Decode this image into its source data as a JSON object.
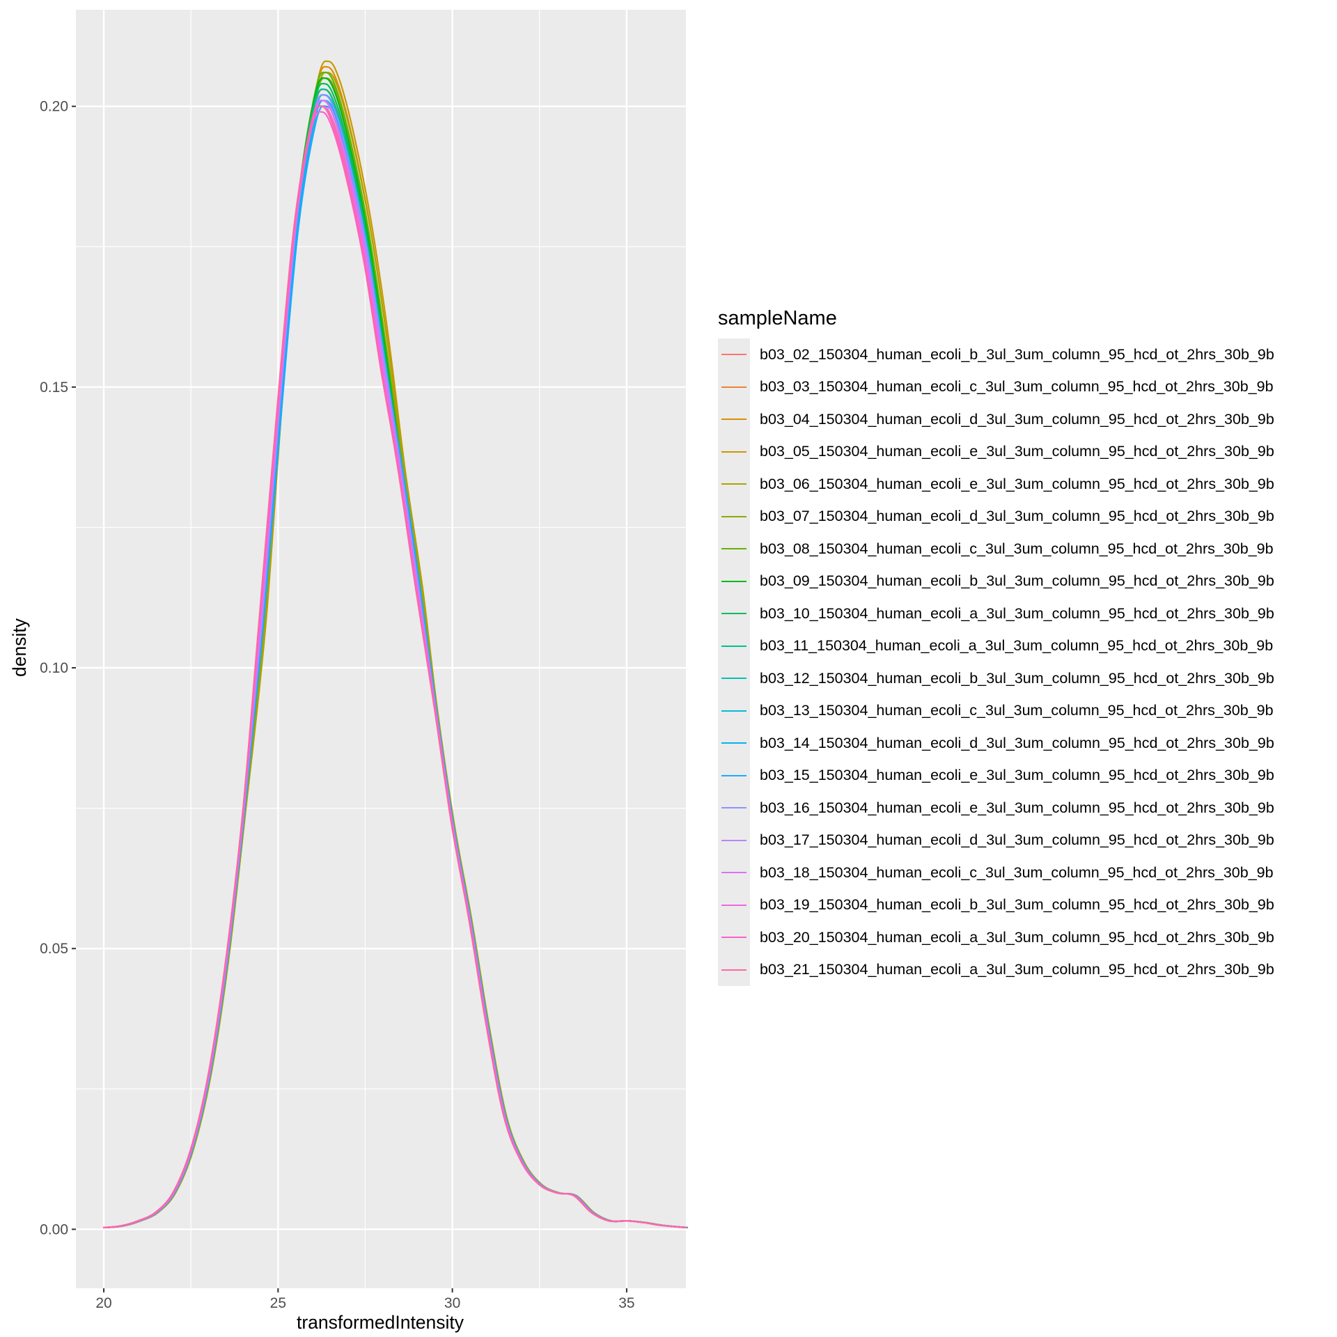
{
  "chart_data": {
    "type": "line",
    "xlabel": "transformedIntensity",
    "ylabel": "density",
    "xlim": [
      19.2,
      36.7
    ],
    "ylim": [
      -0.0105,
      0.2172
    ],
    "x_ticks": [
      20,
      25,
      30,
      35
    ],
    "x_tick_labels": [
      "20",
      "25",
      "30",
      "35"
    ],
    "y_ticks": [
      0.0,
      0.05,
      0.1,
      0.15,
      0.2
    ],
    "y_tick_labels": [
      "0.00",
      "0.05",
      "0.10",
      "0.15",
      "0.20"
    ],
    "grid": true,
    "legend_position": "right",
    "legend_title": "sampleName",
    "series": [
      {
        "name": "b03_02_150304_human_ecoli_b_3ul_3um_column_95_hcd_ot_2hrs_30b_9b",
        "color": "#F8766D",
        "peak_x": 26.3,
        "peak_y": 0.2,
        "shift": 0.0
      },
      {
        "name": "b03_03_150304_human_ecoli_c_3ul_3um_column_95_hcd_ot_2hrs_30b_9b",
        "color": "#EC8239",
        "peak_x": 26.3,
        "peak_y": 0.203,
        "shift": 0.05
      },
      {
        "name": "b03_04_150304_human_ecoli_d_3ul_3um_column_95_hcd_ot_2hrs_30b_9b",
        "color": "#DB8E00",
        "peak_x": 26.5,
        "peak_y": 0.207,
        "shift": 0.12
      },
      {
        "name": "b03_05_150304_human_ecoli_e_3ul_3um_column_95_hcd_ot_2hrs_30b_9b",
        "color": "#C79800",
        "peak_x": 26.5,
        "peak_y": 0.208,
        "shift": 0.15
      },
      {
        "name": "b03_06_150304_human_ecoli_e_3ul_3um_column_95_hcd_ot_2hrs_30b_9b",
        "color": "#AEA200",
        "peak_x": 26.45,
        "peak_y": 0.206,
        "shift": 0.14
      },
      {
        "name": "b03_07_150304_human_ecoli_d_3ul_3um_column_95_hcd_ot_2hrs_30b_9b",
        "color": "#8FAA00",
        "peak_x": 26.4,
        "peak_y": 0.205,
        "shift": 0.1
      },
      {
        "name": "b03_08_150304_human_ecoli_c_3ul_3um_column_95_hcd_ot_2hrs_30b_9b",
        "color": "#64B200",
        "peak_x": 26.35,
        "peak_y": 0.206,
        "shift": 0.08
      },
      {
        "name": "b03_09_150304_human_ecoli_b_3ul_3um_column_95_hcd_ot_2hrs_30b_9b",
        "color": "#00B81B",
        "peak_x": 26.3,
        "peak_y": 0.205,
        "shift": 0.06
      },
      {
        "name": "b03_10_150304_human_ecoli_a_3ul_3um_column_95_hcd_ot_2hrs_30b_9b",
        "color": "#00BD5C",
        "peak_x": 26.3,
        "peak_y": 0.204,
        "shift": 0.05
      },
      {
        "name": "b03_11_150304_human_ecoli_a_3ul_3um_column_95_hcd_ot_2hrs_30b_9b",
        "color": "#00C08E",
        "peak_x": 26.3,
        "peak_y": 0.203,
        "shift": 0.04
      },
      {
        "name": "b03_12_150304_human_ecoli_b_3ul_3um_column_95_hcd_ot_2hrs_30b_9b",
        "color": "#00C1B7",
        "peak_x": 26.3,
        "peak_y": 0.202,
        "shift": 0.05
      },
      {
        "name": "b03_13_150304_human_ecoli_c_3ul_3um_column_95_hcd_ot_2hrs_30b_9b",
        "color": "#00BDD9",
        "peak_x": 26.3,
        "peak_y": 0.202,
        "shift": 0.06
      },
      {
        "name": "b03_14_150304_human_ecoli_d_3ul_3um_column_95_hcd_ot_2hrs_30b_9b",
        "color": "#00B5F1",
        "peak_x": 26.35,
        "peak_y": 0.201,
        "shift": 0.07
      },
      {
        "name": "b03_15_150304_human_ecoli_e_3ul_3um_column_95_hcd_ot_2hrs_30b_9b",
        "color": "#1EA9FF",
        "peak_x": 26.4,
        "peak_y": 0.2,
        "shift": 0.08
      },
      {
        "name": "b03_16_150304_human_ecoli_e_3ul_3um_column_95_hcd_ot_2hrs_30b_9b",
        "color": "#8B93FF",
        "peak_x": 26.3,
        "peak_y": 0.202,
        "shift": 0.04
      },
      {
        "name": "b03_17_150304_human_ecoli_d_3ul_3um_column_95_hcd_ot_2hrs_30b_9b",
        "color": "#B983FF",
        "peak_x": 26.3,
        "peak_y": 0.201,
        "shift": 0.02
      },
      {
        "name": "b03_18_150304_human_ecoli_c_3ul_3um_column_95_hcd_ot_2hrs_30b_9b",
        "color": "#DC71FA",
        "peak_x": 26.25,
        "peak_y": 0.201,
        "shift": 0.0
      },
      {
        "name": "b03_19_150304_human_ecoli_b_3ul_3um_column_95_hcd_ot_2hrs_30b_9b",
        "color": "#F265E7",
        "peak_x": 26.25,
        "peak_y": 0.2,
        "shift": -0.02
      },
      {
        "name": "b03_20_150304_human_ecoli_a_3ul_3um_column_95_hcd_ot_2hrs_30b_9b",
        "color": "#FD61D1",
        "peak_x": 26.2,
        "peak_y": 0.199,
        "shift": -0.04
      },
      {
        "name": "b03_21_150304_human_ecoli_a_3ul_3um_column_95_hcd_ot_2hrs_30b_9b",
        "color": "#FF67A4",
        "peak_x": 26.2,
        "peak_y": 0.2,
        "shift": -0.05
      }
    ],
    "base_curve": {
      "x": [
        20.0,
        20.5,
        21.0,
        21.5,
        22.0,
        22.5,
        23.0,
        23.5,
        24.0,
        24.5,
        25.0,
        25.5,
        26.0,
        26.3,
        26.6,
        27.0,
        27.5,
        28.0,
        28.5,
        29.0,
        29.5,
        30.0,
        30.5,
        31.0,
        31.5,
        32.0,
        32.5,
        33.0,
        33.5,
        34.0,
        34.5,
        35.0,
        35.5,
        36.0,
        36.7
      ],
      "y": [
        0.0003,
        0.0006,
        0.0015,
        0.003,
        0.0065,
        0.014,
        0.027,
        0.047,
        0.074,
        0.108,
        0.146,
        0.18,
        0.199,
        0.202,
        0.199,
        0.19,
        0.175,
        0.155,
        0.135,
        0.114,
        0.093,
        0.072,
        0.055,
        0.036,
        0.02,
        0.012,
        0.008,
        0.0065,
        0.006,
        0.003,
        0.0015,
        0.0015,
        0.0012,
        0.0007,
        0.0003
      ]
    }
  }
}
